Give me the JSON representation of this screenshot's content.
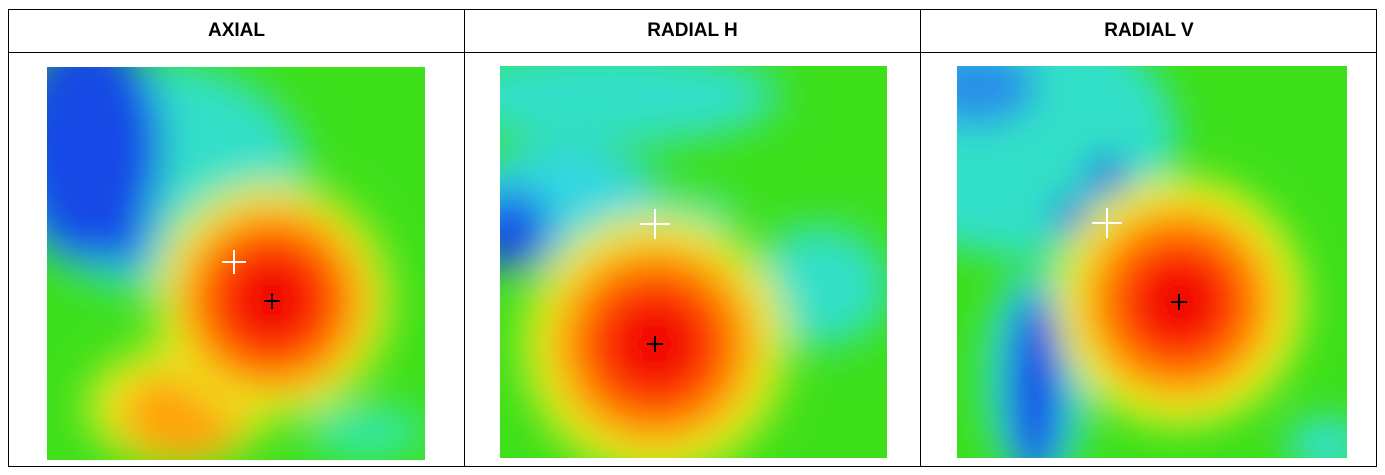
{
  "table": {
    "headers": [
      "AXIAL",
      "RADIAL H",
      "RADIAL V"
    ]
  }
}
